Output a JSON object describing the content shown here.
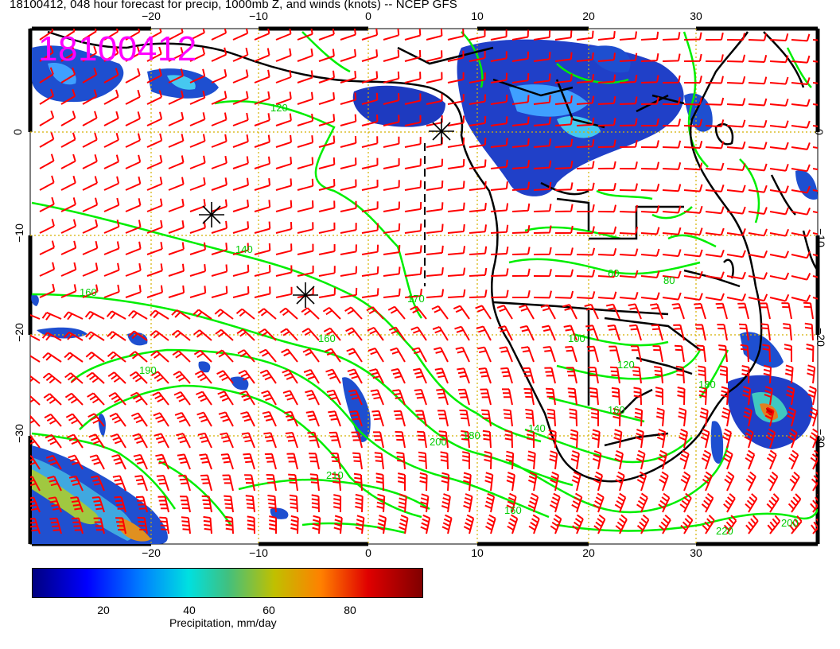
{
  "title": "18100412, 048 hour forecast for precip, 1000mb Z, and winds (knots) -- NCEP GFS",
  "stamp": "18100412",
  "axes": {
    "top_ticks": [
      "−20",
      "−10",
      "0",
      "10",
      "20",
      "30"
    ],
    "bottom_ticks": [
      "−20",
      "−10",
      "0",
      "10",
      "20",
      "30"
    ],
    "left_ticks": [
      "0",
      "−10",
      "−20",
      "−30"
    ],
    "right_ticks": [
      "0",
      "−10",
      "−20",
      "−30"
    ]
  },
  "contour_labels": [
    "120",
    "140",
    "160",
    "170",
    "160",
    "190",
    "200",
    "210",
    "180",
    "160",
    "140",
    "120",
    "100",
    "80",
    "60",
    "220",
    "200",
    "180",
    "160"
  ],
  "colorbar": {
    "ticks": [
      "20",
      "40",
      "60",
      "80"
    ],
    "label": "Precipitation, mm/day"
  },
  "colors": {
    "contour": "#00ee00",
    "barb": "#ff0000",
    "coast": "#000000",
    "grid": "#d4b000",
    "stamp": "#ff00ff"
  }
}
